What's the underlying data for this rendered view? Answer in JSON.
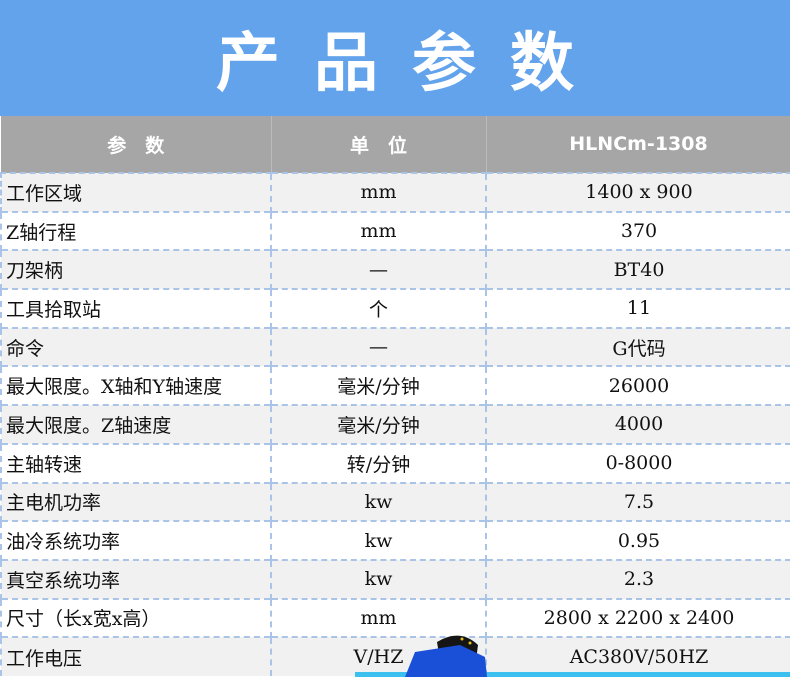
{
  "banner": {
    "title": "产品参数"
  },
  "table": {
    "headers": [
      "参　数",
      "单　位",
      "HLNCm-1308"
    ],
    "rows": [
      [
        "工作区域",
        "mm",
        "1400 x 900"
      ],
      [
        "Z轴行程",
        "mm",
        "370"
      ],
      [
        "刀架柄",
        "—",
        "BT40"
      ],
      [
        "工具拾取站",
        "个",
        "11"
      ],
      [
        "命令",
        "—",
        "G代码"
      ],
      [
        "最大限度。X轴和Y轴速度",
        "毫米/分钟",
        "26000"
      ],
      [
        "最大限度。Z轴速度",
        "毫米/分钟",
        "4000"
      ],
      [
        "主轴转速",
        "转/分钟",
        "0-8000"
      ],
      [
        "主电机功率",
        "kw",
        "7.5"
      ],
      [
        "油冷系统功率",
        "kw",
        "0.95"
      ],
      [
        "真空系统功率",
        "kw",
        "2.3"
      ],
      [
        "尺寸（长x宽x高）",
        "mm",
        "2800 x 2200 x 2400"
      ],
      [
        "工作电压",
        "V/HZ",
        "AC380V/50HZ"
      ]
    ]
  },
  "colors": {
    "banner": "#62a3ec",
    "header": "#a6a6a6",
    "row_alt": "#f1f1f1",
    "border": "#a9c4e6"
  }
}
